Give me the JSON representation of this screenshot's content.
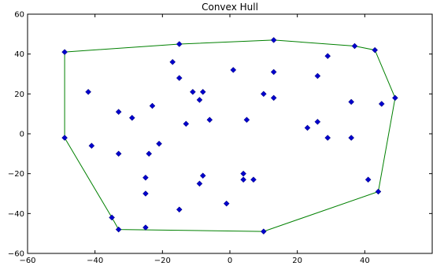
{
  "chart_data": {
    "type": "scatter",
    "title": "Convex Hull",
    "xlabel": "",
    "ylabel": "",
    "xlim": [
      -60,
      60
    ],
    "ylim": [
      -60,
      60
    ],
    "xticks": [
      -60,
      -40,
      -20,
      0,
      20,
      40
    ],
    "yticks": [
      -60,
      -40,
      -20,
      0,
      20,
      40,
      60
    ],
    "grid": false,
    "colors": {
      "points": "#0000cc",
      "hull": "#008000"
    },
    "points": [
      [
        -49,
        41
      ],
      [
        -49,
        -2
      ],
      [
        -42,
        21
      ],
      [
        -41,
        -6
      ],
      [
        -35,
        -42
      ],
      [
        -33,
        -48
      ],
      [
        -33,
        11
      ],
      [
        -33,
        -10
      ],
      [
        -29,
        8
      ],
      [
        -25,
        -22
      ],
      [
        -25,
        -30
      ],
      [
        -25,
        -47
      ],
      [
        -24,
        -10
      ],
      [
        -23,
        14
      ],
      [
        -21,
        -5
      ],
      [
        -17,
        36
      ],
      [
        -15,
        45
      ],
      [
        -15,
        28
      ],
      [
        -15,
        -38
      ],
      [
        -13,
        5
      ],
      [
        -11,
        21
      ],
      [
        -9,
        17
      ],
      [
        -9,
        -25
      ],
      [
        -8,
        21
      ],
      [
        -8,
        -21
      ],
      [
        -6,
        7
      ],
      [
        -1,
        -35
      ],
      [
        1,
        32
      ],
      [
        4,
        -20
      ],
      [
        4,
        -23
      ],
      [
        5,
        7
      ],
      [
        7,
        -23
      ],
      [
        10,
        20
      ],
      [
        10,
        -49
      ],
      [
        13,
        47
      ],
      [
        13,
        31
      ],
      [
        13,
        18
      ],
      [
        23,
        3
      ],
      [
        26,
        29
      ],
      [
        26,
        6
      ],
      [
        29,
        39
      ],
      [
        29,
        -2
      ],
      [
        36,
        16
      ],
      [
        36,
        -2
      ],
      [
        37,
        44
      ],
      [
        41,
        -23
      ],
      [
        43,
        42
      ],
      [
        44,
        -29
      ],
      [
        45,
        15
      ],
      [
        49,
        18
      ]
    ],
    "hull": [
      [
        -49,
        41
      ],
      [
        -15,
        45
      ],
      [
        13,
        47
      ],
      [
        37,
        44
      ],
      [
        43,
        42
      ],
      [
        49,
        18
      ],
      [
        44,
        -29
      ],
      [
        10,
        -49
      ],
      [
        -33,
        -48
      ],
      [
        -35,
        -42
      ],
      [
        -49,
        -2
      ]
    ]
  }
}
